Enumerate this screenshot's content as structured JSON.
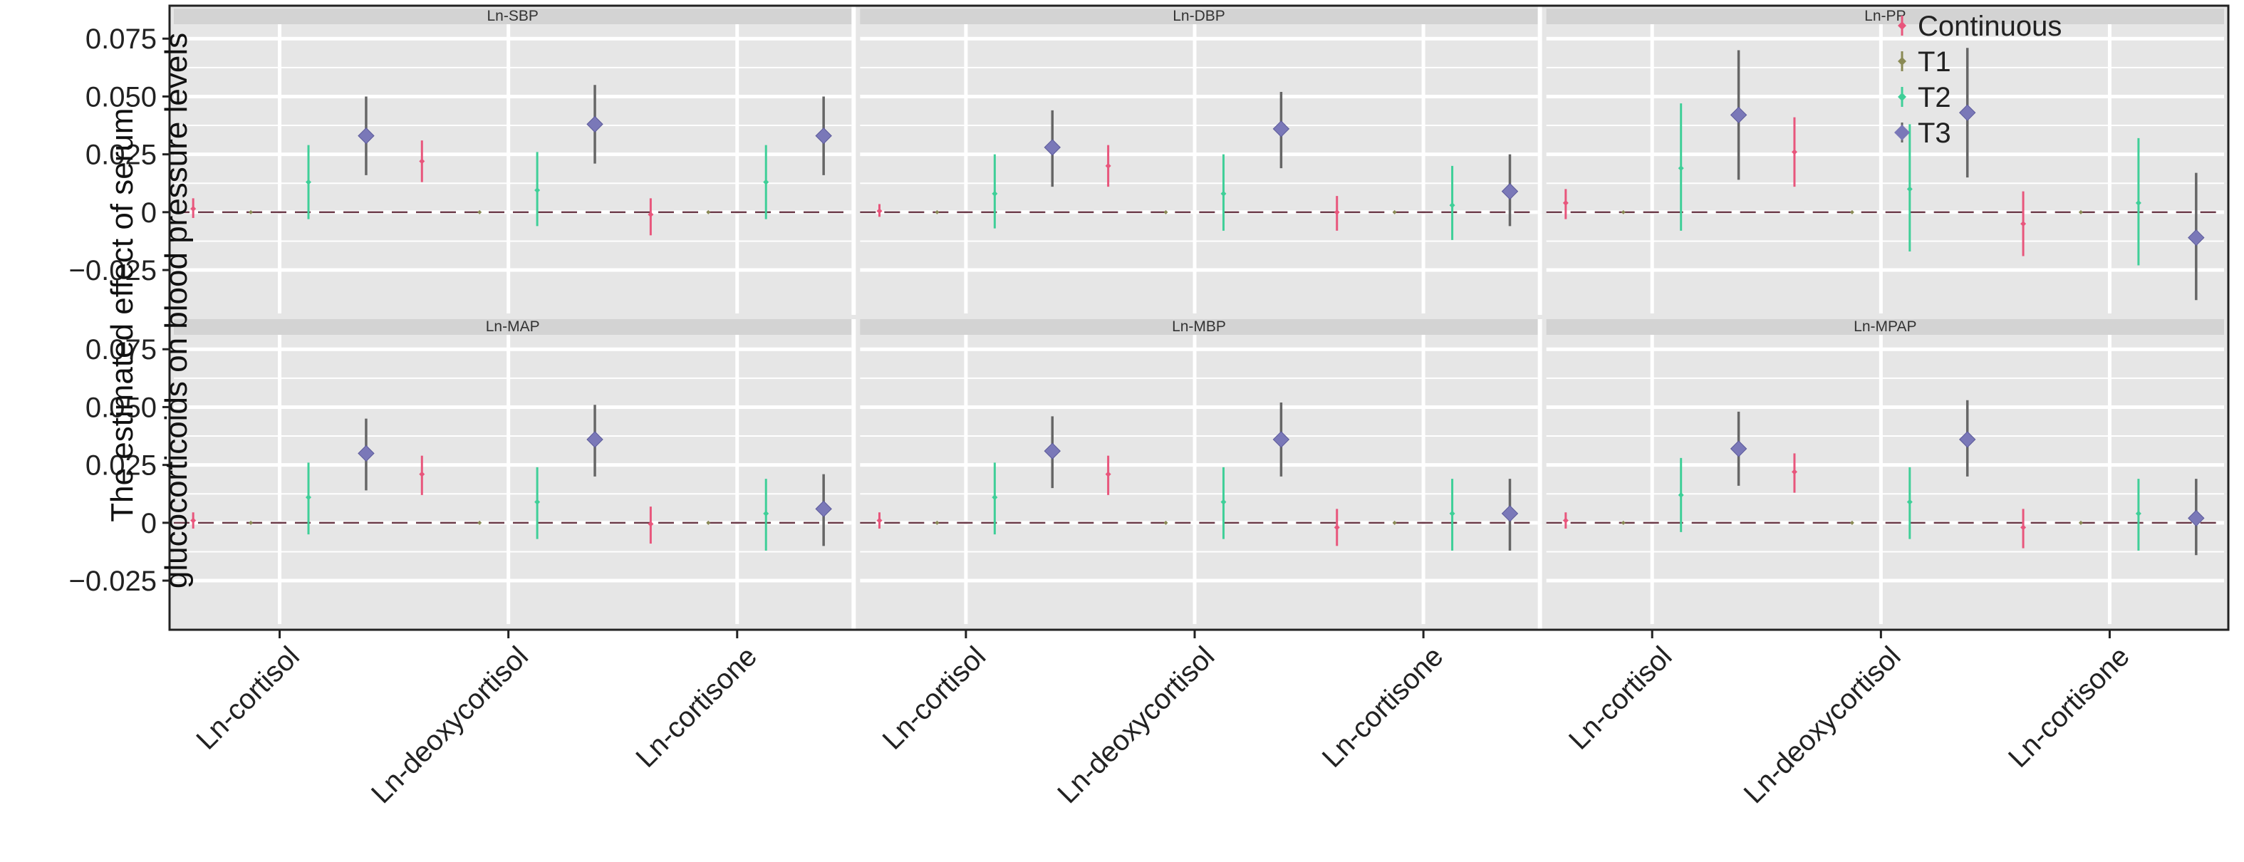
{
  "chart_data": {
    "type": "scatter",
    "subtype": "point-range",
    "ylabel_lines": [
      "The estimated effect of serum",
      "glucocorticoids on blood pressure levels"
    ],
    "xlabel": "",
    "categories": [
      "Ln-cortisol",
      "Ln-deoxycortisol",
      "Ln-cortisone"
    ],
    "series_names": [
      "Continuous",
      "T1",
      "T2",
      "T3"
    ],
    "colors": {
      "Continuous": "#e8567c",
      "T1": "#8a8a55",
      "T2": "#3fcf98",
      "T3": "#7a78b8",
      "T3_errorbar": "#666666",
      "panel_bg": "#e6e6e6",
      "strip_bg": "#d3d3d3",
      "grid": "#ffffff",
      "zero_line": "#6b3a48"
    },
    "ylim": [
      -0.045,
      0.08
    ],
    "y_ticks": [
      -0.025,
      0,
      0.025,
      0.05,
      0.075
    ],
    "y_tick_labels": [
      "−0.025",
      "0",
      "0.025",
      "0.050",
      "0.075"
    ],
    "reference_line_y": 0,
    "legend_position": "top-right",
    "grid": true,
    "panels": [
      {
        "label": "Ln-SBP",
        "points": [
          {
            "category": "Ln-cortisol",
            "series": "Continuous",
            "y": 0.0015,
            "lo": -0.0025,
            "hi": 0.006
          },
          {
            "category": "Ln-cortisol",
            "series": "T1",
            "y": 0,
            "lo": 0,
            "hi": 0
          },
          {
            "category": "Ln-cortisol",
            "series": "T2",
            "y": 0.013,
            "lo": -0.003,
            "hi": 0.029
          },
          {
            "category": "Ln-cortisol",
            "series": "T3",
            "y": 0.033,
            "lo": 0.016,
            "hi": 0.05
          },
          {
            "category": "Ln-deoxycortisol",
            "series": "Continuous",
            "y": 0.022,
            "lo": 0.013,
            "hi": 0.031
          },
          {
            "category": "Ln-deoxycortisol",
            "series": "T1",
            "y": 0,
            "lo": 0,
            "hi": 0
          },
          {
            "category": "Ln-deoxycortisol",
            "series": "T2",
            "y": 0.0095,
            "lo": -0.006,
            "hi": 0.026
          },
          {
            "category": "Ln-deoxycortisol",
            "series": "T3",
            "y": 0.038,
            "lo": 0.021,
            "hi": 0.055
          },
          {
            "category": "Ln-cortisone",
            "series": "Continuous",
            "y": -0.001,
            "lo": -0.01,
            "hi": 0.006
          },
          {
            "category": "Ln-cortisone",
            "series": "T1",
            "y": 0,
            "lo": 0,
            "hi": 0
          },
          {
            "category": "Ln-cortisone",
            "series": "T2",
            "y": 0.013,
            "lo": -0.003,
            "hi": 0.029
          },
          {
            "category": "Ln-cortisone",
            "series": "T3",
            "y": 0.033,
            "lo": 0.016,
            "hi": 0.05
          }
        ]
      },
      {
        "label": "Ln-DBP",
        "points": [
          {
            "category": "Ln-cortisol",
            "series": "Continuous",
            "y": 0.0005,
            "lo": -0.002,
            "hi": 0.0035
          },
          {
            "category": "Ln-cortisol",
            "series": "T1",
            "y": 0,
            "lo": 0,
            "hi": 0
          },
          {
            "category": "Ln-cortisol",
            "series": "T2",
            "y": 0.008,
            "lo": -0.007,
            "hi": 0.025
          },
          {
            "category": "Ln-cortisol",
            "series": "T3",
            "y": 0.028,
            "lo": 0.011,
            "hi": 0.044
          },
          {
            "category": "Ln-deoxycortisol",
            "series": "Continuous",
            "y": 0.02,
            "lo": 0.011,
            "hi": 0.029
          },
          {
            "category": "Ln-deoxycortisol",
            "series": "T1",
            "y": 0,
            "lo": 0,
            "hi": 0
          },
          {
            "category": "Ln-deoxycortisol",
            "series": "T2",
            "y": 0.008,
            "lo": -0.008,
            "hi": 0.025
          },
          {
            "category": "Ln-deoxycortisol",
            "series": "T3",
            "y": 0.036,
            "lo": 0.019,
            "hi": 0.052
          },
          {
            "category": "Ln-cortisone",
            "series": "Continuous",
            "y": 0,
            "lo": -0.008,
            "hi": 0.007
          },
          {
            "category": "Ln-cortisone",
            "series": "T1",
            "y": 0,
            "lo": 0,
            "hi": 0
          },
          {
            "category": "Ln-cortisone",
            "series": "T2",
            "y": 0.003,
            "lo": -0.012,
            "hi": 0.02
          },
          {
            "category": "Ln-cortisone",
            "series": "T3",
            "y": 0.009,
            "lo": -0.006,
            "hi": 0.025
          }
        ]
      },
      {
        "label": "Ln-PP",
        "points": [
          {
            "category": "Ln-cortisol",
            "series": "Continuous",
            "y": 0.004,
            "lo": -0.003,
            "hi": 0.01
          },
          {
            "category": "Ln-cortisol",
            "series": "T1",
            "y": 0,
            "lo": 0,
            "hi": 0
          },
          {
            "category": "Ln-cortisol",
            "series": "T2",
            "y": 0.019,
            "lo": -0.008,
            "hi": 0.047
          },
          {
            "category": "Ln-cortisol",
            "series": "T3",
            "y": 0.042,
            "lo": 0.014,
            "hi": 0.07
          },
          {
            "category": "Ln-deoxycortisol",
            "series": "Continuous",
            "y": 0.026,
            "lo": 0.011,
            "hi": 0.041
          },
          {
            "category": "Ln-deoxycortisol",
            "series": "T1",
            "y": 0,
            "lo": 0,
            "hi": 0
          },
          {
            "category": "Ln-deoxycortisol",
            "series": "T2",
            "y": 0.01,
            "lo": -0.017,
            "hi": 0.038
          },
          {
            "category": "Ln-deoxycortisol",
            "series": "T3",
            "y": 0.043,
            "lo": 0.015,
            "hi": 0.071
          },
          {
            "category": "Ln-cortisone",
            "series": "Continuous",
            "y": -0.005,
            "lo": -0.019,
            "hi": 0.009
          },
          {
            "category": "Ln-cortisone",
            "series": "T1",
            "y": 0,
            "lo": 0,
            "hi": 0
          },
          {
            "category": "Ln-cortisone",
            "series": "T2",
            "y": 0.004,
            "lo": -0.023,
            "hi": 0.032
          },
          {
            "category": "Ln-cortisone",
            "series": "T3",
            "y": -0.011,
            "lo": -0.038,
            "hi": 0.017
          }
        ]
      },
      {
        "label": "Ln-MAP",
        "points": [
          {
            "category": "Ln-cortisol",
            "series": "Continuous",
            "y": 0.001,
            "lo": -0.0025,
            "hi": 0.0045
          },
          {
            "category": "Ln-cortisol",
            "series": "T1",
            "y": 0,
            "lo": 0,
            "hi": 0
          },
          {
            "category": "Ln-cortisol",
            "series": "T2",
            "y": 0.011,
            "lo": -0.005,
            "hi": 0.026
          },
          {
            "category": "Ln-cortisol",
            "series": "T3",
            "y": 0.03,
            "lo": 0.014,
            "hi": 0.045
          },
          {
            "category": "Ln-deoxycortisol",
            "series": "Continuous",
            "y": 0.021,
            "lo": 0.012,
            "hi": 0.029
          },
          {
            "category": "Ln-deoxycortisol",
            "series": "T1",
            "y": 0,
            "lo": 0,
            "hi": 0
          },
          {
            "category": "Ln-deoxycortisol",
            "series": "T2",
            "y": 0.009,
            "lo": -0.007,
            "hi": 0.024
          },
          {
            "category": "Ln-deoxycortisol",
            "series": "T3",
            "y": 0.036,
            "lo": 0.02,
            "hi": 0.051
          },
          {
            "category": "Ln-cortisone",
            "series": "Continuous",
            "y": -0.0005,
            "lo": -0.009,
            "hi": 0.007
          },
          {
            "category": "Ln-cortisone",
            "series": "T1",
            "y": 0,
            "lo": 0,
            "hi": 0
          },
          {
            "category": "Ln-cortisone",
            "series": "T2",
            "y": 0.004,
            "lo": -0.012,
            "hi": 0.019
          },
          {
            "category": "Ln-cortisone",
            "series": "T3",
            "y": 0.006,
            "lo": -0.01,
            "hi": 0.021
          }
        ]
      },
      {
        "label": "Ln-MBP",
        "points": [
          {
            "category": "Ln-cortisol",
            "series": "Continuous",
            "y": 0.001,
            "lo": -0.0025,
            "hi": 0.0045
          },
          {
            "category": "Ln-cortisol",
            "series": "T1",
            "y": 0,
            "lo": 0,
            "hi": 0
          },
          {
            "category": "Ln-cortisol",
            "series": "T2",
            "y": 0.011,
            "lo": -0.005,
            "hi": 0.026
          },
          {
            "category": "Ln-cortisol",
            "series": "T3",
            "y": 0.031,
            "lo": 0.015,
            "hi": 0.046
          },
          {
            "category": "Ln-deoxycortisol",
            "series": "Continuous",
            "y": 0.021,
            "lo": 0.012,
            "hi": 0.029
          },
          {
            "category": "Ln-deoxycortisol",
            "series": "T1",
            "y": 0,
            "lo": 0,
            "hi": 0
          },
          {
            "category": "Ln-deoxycortisol",
            "series": "T2",
            "y": 0.009,
            "lo": -0.007,
            "hi": 0.024
          },
          {
            "category": "Ln-deoxycortisol",
            "series": "T3",
            "y": 0.036,
            "lo": 0.02,
            "hi": 0.052
          },
          {
            "category": "Ln-cortisone",
            "series": "Continuous",
            "y": -0.002,
            "lo": -0.01,
            "hi": 0.006
          },
          {
            "category": "Ln-cortisone",
            "series": "T1",
            "y": 0,
            "lo": 0,
            "hi": 0
          },
          {
            "category": "Ln-cortisone",
            "series": "T2",
            "y": 0.004,
            "lo": -0.012,
            "hi": 0.019
          },
          {
            "category": "Ln-cortisone",
            "series": "T3",
            "y": 0.004,
            "lo": -0.012,
            "hi": 0.019
          }
        ]
      },
      {
        "label": "Ln-MPAP",
        "points": [
          {
            "category": "Ln-cortisol",
            "series": "Continuous",
            "y": 0.001,
            "lo": -0.0025,
            "hi": 0.0045
          },
          {
            "category": "Ln-cortisol",
            "series": "T1",
            "y": 0,
            "lo": 0,
            "hi": 0
          },
          {
            "category": "Ln-cortisol",
            "series": "T2",
            "y": 0.012,
            "lo": -0.004,
            "hi": 0.028
          },
          {
            "category": "Ln-cortisol",
            "series": "T3",
            "y": 0.032,
            "lo": 0.016,
            "hi": 0.048
          },
          {
            "category": "Ln-deoxycortisol",
            "series": "Continuous",
            "y": 0.022,
            "lo": 0.013,
            "hi": 0.03
          },
          {
            "category": "Ln-deoxycortisol",
            "series": "T1",
            "y": 0,
            "lo": 0,
            "hi": 0
          },
          {
            "category": "Ln-deoxycortisol",
            "series": "T2",
            "y": 0.009,
            "lo": -0.007,
            "hi": 0.024
          },
          {
            "category": "Ln-deoxycortisol",
            "series": "T3",
            "y": 0.036,
            "lo": 0.02,
            "hi": 0.053
          },
          {
            "category": "Ln-cortisone",
            "series": "Continuous",
            "y": -0.002,
            "lo": -0.011,
            "hi": 0.006
          },
          {
            "category": "Ln-cortisone",
            "series": "T1",
            "y": 0,
            "lo": 0,
            "hi": 0
          },
          {
            "category": "Ln-cortisone",
            "series": "T2",
            "y": 0.004,
            "lo": -0.012,
            "hi": 0.019
          },
          {
            "category": "Ln-cortisone",
            "series": "T3",
            "y": 0.002,
            "lo": -0.014,
            "hi": 0.019
          }
        ]
      }
    ]
  }
}
